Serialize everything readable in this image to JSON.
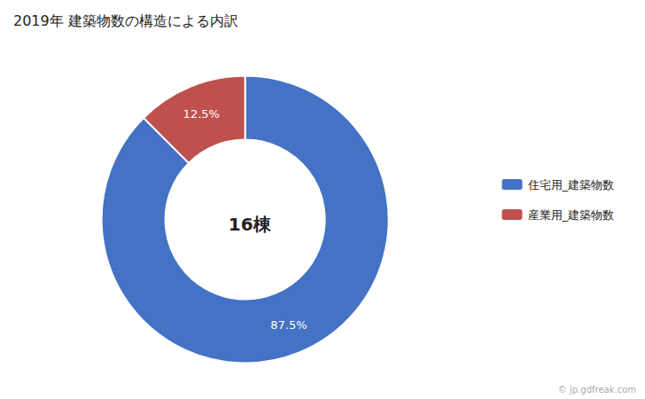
{
  "chart_data": {
    "type": "pie",
    "title": "2019年 建築物数の構造による内訳",
    "categories": [
      "住宅用_建築物数",
      "産業用_建築物数"
    ],
    "values": [
      87.5,
      12.5
    ],
    "value_labels": [
      "87.5%",
      "12.5%"
    ],
    "data_labels": true,
    "colors": [
      "#4472C4",
      "#C0504D"
    ],
    "legend": "right",
    "annotations": [
      "16棟",
      "© jp.gdfreak.com"
    ]
  }
}
